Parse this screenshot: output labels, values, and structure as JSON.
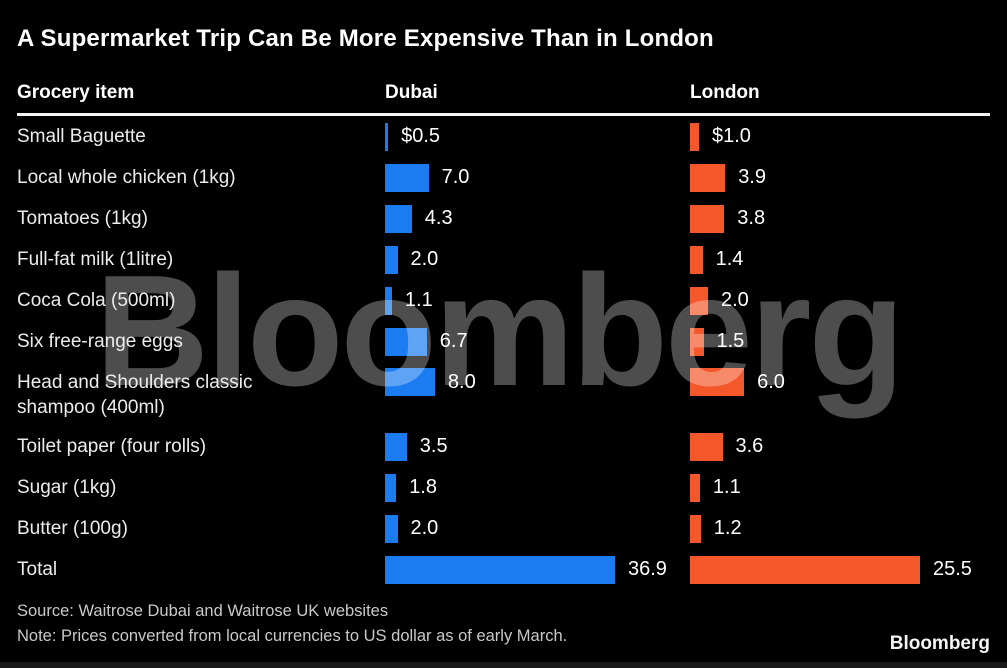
{
  "title": "A Supermarket Trip Can Be More Expensive Than in London",
  "watermark": {
    "text": "Bloomberg"
  },
  "footer": {
    "source": "Source: Waitrose Dubai and Waitrose UK websites",
    "note": "Note: Prices converted from local currencies to US dollar as of early March.",
    "brand": "Bloomberg"
  },
  "chart_data": {
    "type": "bar",
    "orientation": "horizontal",
    "title": "A Supermarket Trip Can Be More Expensive Than in London",
    "columns": [
      "Grocery item",
      "Dubai",
      "London"
    ],
    "currency": "USD",
    "legend_position": "column-headers",
    "grid": false,
    "series": [
      {
        "name": "Dubai",
        "color": "#1b7cf1",
        "total": 36.9
      },
      {
        "name": "London",
        "color": "#f4582a",
        "total": 25.5
      }
    ],
    "scaling_note": "each column scaled independently so its Total bar has equal max width",
    "rows": [
      {
        "item": "Small Baguette",
        "dubai": 0.5,
        "dubai_label": "$0.5",
        "london": 1.0,
        "london_label": "$1.0"
      },
      {
        "item": "Local whole chicken (1kg)",
        "dubai": 7.0,
        "dubai_label": "7.0",
        "london": 3.9,
        "london_label": "3.9"
      },
      {
        "item": "Tomatoes (1kg)",
        "dubai": 4.3,
        "dubai_label": "4.3",
        "london": 3.8,
        "london_label": "3.8"
      },
      {
        "item": "Full-fat milk (1litre)",
        "dubai": 2.0,
        "dubai_label": "2.0",
        "london": 1.4,
        "london_label": "1.4"
      },
      {
        "item": "Coca Cola (500ml)",
        "dubai": 1.1,
        "dubai_label": "1.1",
        "london": 2.0,
        "london_label": "2.0"
      },
      {
        "item": "Six free-range eggs",
        "dubai": 6.7,
        "dubai_label": "6.7",
        "london": 1.5,
        "london_label": "1.5"
      },
      {
        "item": "Head and Shoulders classic shampoo (400ml)",
        "item_lines": [
          "Head and Shoulders classic",
          "shampoo (400ml)"
        ],
        "dubai": 8.0,
        "dubai_label": "8.0",
        "london": 6.0,
        "london_label": "6.0"
      },
      {
        "item": "Toilet paper (four rolls)",
        "dubai": 3.5,
        "dubai_label": "3.5",
        "london": 3.6,
        "london_label": "3.6"
      },
      {
        "item": "Sugar (1kg)",
        "dubai": 1.8,
        "dubai_label": "1.8",
        "london": 1.1,
        "london_label": "1.1"
      },
      {
        "item": "Butter (100g)",
        "dubai": 2.0,
        "dubai_label": "2.0",
        "london": 1.2,
        "london_label": "1.2"
      },
      {
        "item": "Total",
        "is_total": true,
        "dubai": 36.9,
        "dubai_label": "36.9",
        "london": 25.5,
        "london_label": "25.5"
      }
    ]
  }
}
